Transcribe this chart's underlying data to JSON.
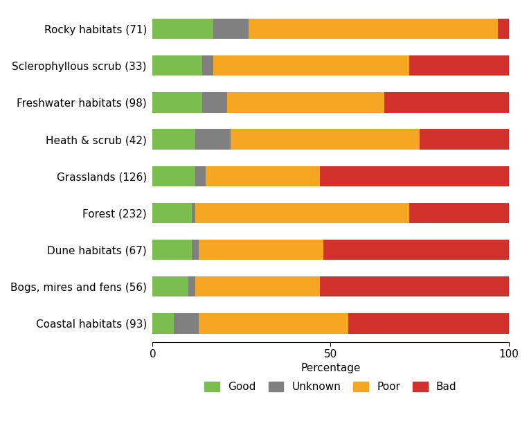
{
  "habitats": [
    "Rocky habitats (71)",
    "Sclerophyllous scrub (33)",
    "Freshwater habitats (98)",
    "Heath & scrub (42)",
    "Grasslands (126)",
    "Forest (232)",
    "Dune habitats (67)",
    "Bogs, mires and fens (56)",
    "Coastal habitats (93)"
  ],
  "good": [
    17,
    14,
    14,
    12,
    12,
    11,
    11,
    10,
    6
  ],
  "unknown": [
    10,
    3,
    7,
    10,
    3,
    1,
    2,
    2,
    7
  ],
  "poor": [
    70,
    55,
    44,
    53,
    32,
    60,
    35,
    35,
    42
  ],
  "bad": [
    3,
    28,
    35,
    25,
    53,
    28,
    52,
    53,
    45
  ],
  "colors": {
    "good": "#7BBD4F",
    "unknown": "#808080",
    "poor": "#F5A623",
    "bad": "#D0312D"
  },
  "xlabel": "Percentage",
  "xticks": [
    0,
    50,
    100
  ],
  "bar_height": 0.55,
  "figsize": [
    7.64,
    6.41
  ],
  "dpi": 100
}
